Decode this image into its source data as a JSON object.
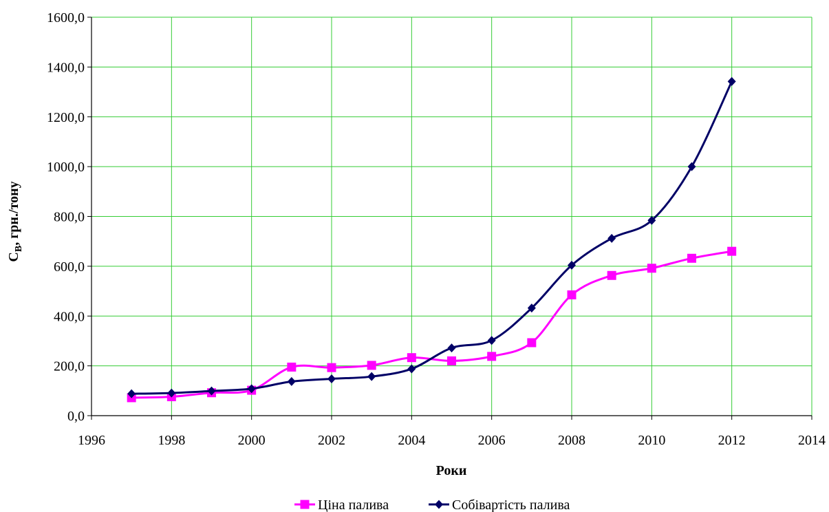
{
  "chart_data": {
    "type": "line",
    "title": "",
    "xlabel": "Роки",
    "ylabel_main": "С",
    "ylabel_sub": "В",
    "ylabel_rest": ", грн./тону",
    "xlim": [
      1996,
      2014
    ],
    "ylim": [
      0,
      1600
    ],
    "xticks": [
      1996,
      1998,
      2000,
      2002,
      2004,
      2006,
      2008,
      2010,
      2012,
      2014
    ],
    "yticks": [
      0,
      200,
      400,
      600,
      800,
      1000,
      1200,
      1400,
      1600
    ],
    "ytick_labels": [
      "0,0",
      "200,0",
      "400,0",
      "600,0",
      "800,0",
      "1000,0",
      "1200,0",
      "1400,0",
      "1600,0"
    ],
    "grid": true,
    "grid_color": "#33cc33",
    "legend_position": "bottom",
    "series": [
      {
        "name": "Ціна палива",
        "color": "#ff00ff",
        "marker": "square",
        "smooth": true,
        "x": [
          1997,
          1998,
          1999,
          2000,
          2001,
          2002,
          2003,
          2004,
          2005,
          2006,
          2007,
          2008,
          2009,
          2010,
          2011,
          2012
        ],
        "values": [
          72,
          76,
          92,
          102,
          195,
          193,
          202,
          233,
          220,
          238,
          293,
          485,
          563,
          592,
          632,
          660
        ]
      },
      {
        "name": "Собівартість палива",
        "color": "#000066",
        "marker": "diamond",
        "smooth": true,
        "x": [
          1997,
          1998,
          1999,
          2000,
          2001,
          2002,
          2003,
          2004,
          2005,
          2006,
          2007,
          2008,
          2009,
          2010,
          2011,
          2012
        ],
        "values": [
          88,
          91,
          99,
          108,
          137,
          148,
          157,
          188,
          272,
          302,
          432,
          604,
          712,
          784,
          1000,
          1342
        ]
      }
    ]
  }
}
